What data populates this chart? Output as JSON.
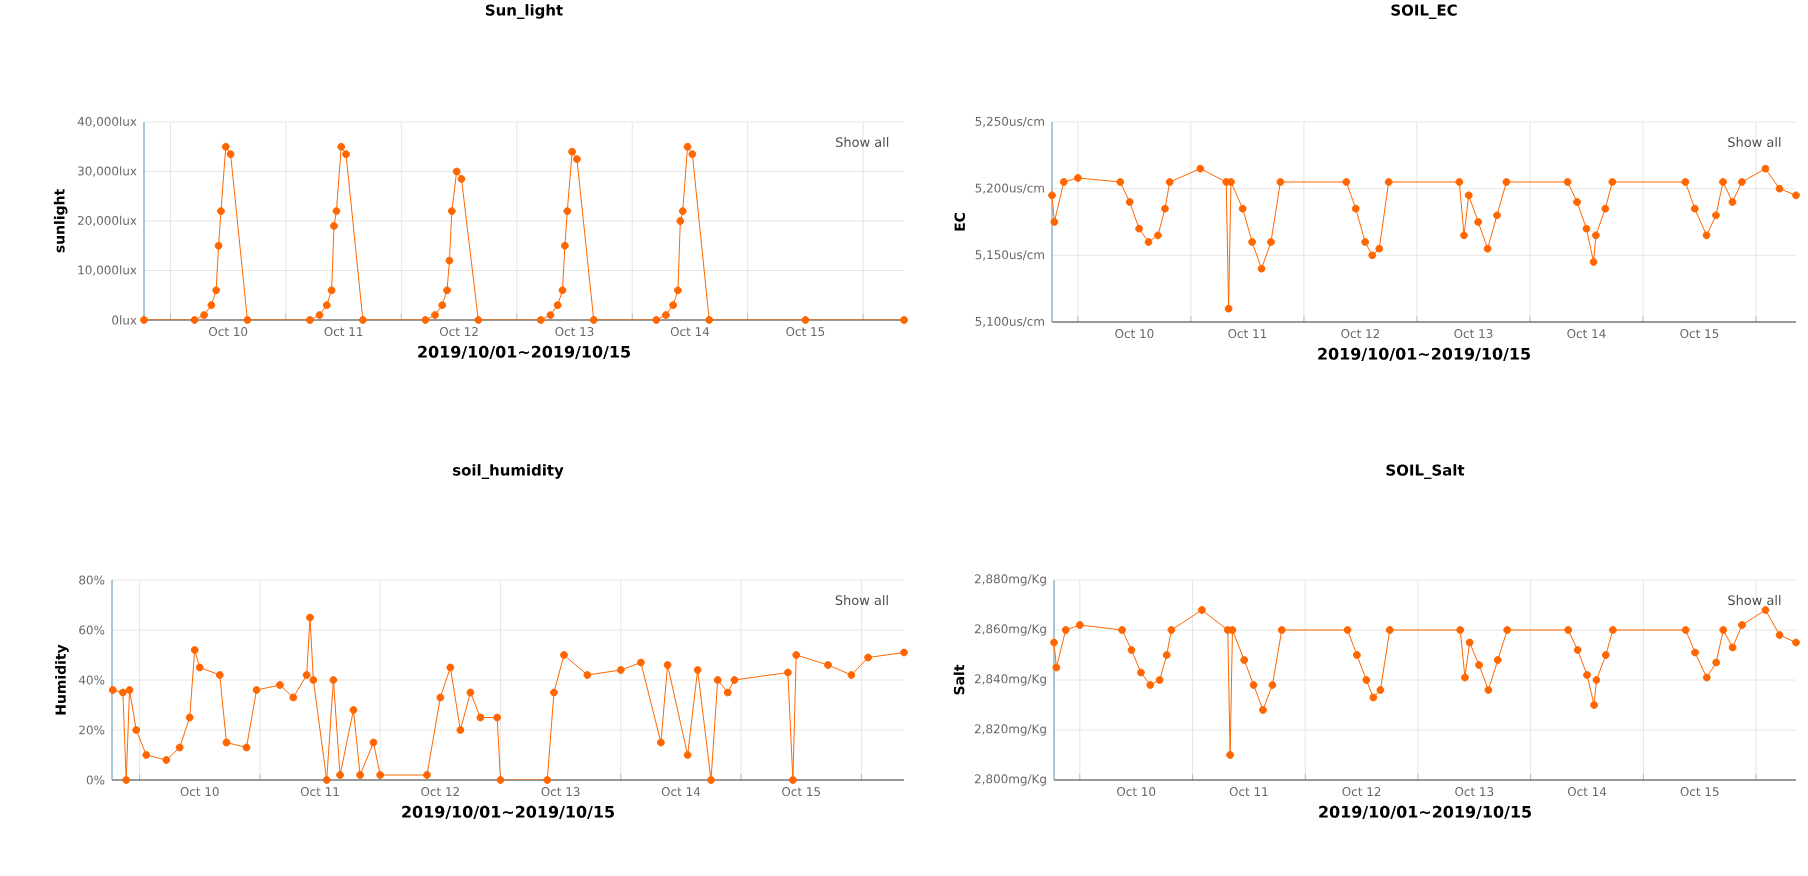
{
  "chart_data": [
    {
      "type": "line",
      "title": "Sun_light",
      "xlabel": "2019/10/01~2019/10/15",
      "ylabel": "sunlight",
      "annotations": [
        "Show all"
      ],
      "grid": true,
      "marker": "circle",
      "x": [
        "2019-10-09T18:30",
        "2019-10-10T05:00",
        "2019-10-10T07:00",
        "2019-10-10T08:30",
        "2019-10-10T09:30",
        "2019-10-10T10:00",
        "2019-10-10T10:30",
        "2019-10-10T11:30",
        "2019-10-10T12:30",
        "2019-10-10T16:00",
        "2019-10-11T05:00",
        "2019-10-11T07:00",
        "2019-10-11T08:30",
        "2019-10-11T09:30",
        "2019-10-11T10:00",
        "2019-10-11T10:30",
        "2019-10-11T11:30",
        "2019-10-11T12:30",
        "2019-10-11T16:00",
        "2019-10-12T05:00",
        "2019-10-12T07:00",
        "2019-10-12T08:30",
        "2019-10-12T09:30",
        "2019-10-12T10:00",
        "2019-10-12T10:30",
        "2019-10-12T11:30",
        "2019-10-12T12:30",
        "2019-10-12T16:00",
        "2019-10-13T05:00",
        "2019-10-13T07:00",
        "2019-10-13T08:30",
        "2019-10-13T09:30",
        "2019-10-13T10:00",
        "2019-10-13T10:30",
        "2019-10-13T11:30",
        "2019-10-13T12:30",
        "2019-10-13T16:00",
        "2019-10-14T05:00",
        "2019-10-14T07:00",
        "2019-10-14T08:30",
        "2019-10-14T09:30",
        "2019-10-14T10:00",
        "2019-10-14T10:30",
        "2019-10-14T11:30",
        "2019-10-14T12:30",
        "2019-10-14T16:00",
        "2019-10-15T12:00",
        "2019-10-16T08:30"
      ],
      "series": [
        {
          "color": "#ff6600",
          "values": [
            0,
            0,
            1000,
            3000,
            6000,
            15000,
            22000,
            35000,
            33500,
            0,
            0,
            1000,
            3000,
            6000,
            19000,
            22000,
            35000,
            33500,
            0,
            0,
            1000,
            3000,
            6000,
            12000,
            22000,
            30000,
            28500,
            0,
            0,
            1000,
            3000,
            6000,
            15000,
            22000,
            34000,
            32500,
            0,
            0,
            1000,
            3000,
            6000,
            20000,
            22000,
            35000,
            33500,
            0,
            0,
            0
          ]
        }
      ],
      "xlim": [
        "2019-10-09T18:30",
        "2019-10-16T08:30"
      ],
      "ylim": [
        0,
        40000
      ],
      "xticks": [
        {
          "value": "2019-10-10T00:00",
          "label": null
        },
        {
          "value": "2019-10-11T00:00",
          "label": null
        },
        {
          "value": "2019-10-12T00:00",
          "label": null
        },
        {
          "value": "2019-10-13T00:00",
          "label": null
        },
        {
          "value": "2019-10-14T00:00",
          "label": null
        },
        {
          "value": "2019-10-15T00:00",
          "label": null
        },
        {
          "value": "2019-10-16T00:00",
          "label": null
        },
        {
          "value": "2019-10-10T12:00",
          "label": "Oct 10"
        },
        {
          "value": "2019-10-11T12:00",
          "label": "Oct 11"
        },
        {
          "value": "2019-10-12T12:00",
          "label": "Oct 12"
        },
        {
          "value": "2019-10-13T12:00",
          "label": "Oct 13"
        },
        {
          "value": "2019-10-14T12:00",
          "label": "Oct 14"
        },
        {
          "value": "2019-10-15T12:00",
          "label": "Oct 15"
        }
      ],
      "yticks": [
        {
          "value": 0,
          "label": "0lux"
        },
        {
          "value": 10000,
          "label": "10,000lux"
        },
        {
          "value": 20000,
          "label": "20,000lux"
        },
        {
          "value": 30000,
          "label": "30,000lux"
        },
        {
          "value": 40000,
          "label": "40,000lux"
        }
      ]
    },
    {
      "type": "line",
      "title": "SOIL_EC",
      "xlabel": "2019/10/01~2019/10/15",
      "ylabel": "EC",
      "annotations": [
        "Show all"
      ],
      "grid": true,
      "marker": "circle",
      "x": [
        "2019-10-09T18:30",
        "2019-10-09T19:00",
        "2019-10-09T21:00",
        "2019-10-10T00:00",
        "2019-10-10T09:00",
        "2019-10-10T11:00",
        "2019-10-10T13:00",
        "2019-10-10T15:00",
        "2019-10-10T17:00",
        "2019-10-10T18:30",
        "2019-10-10T19:30",
        "2019-10-11T02:00",
        "2019-10-11T07:30",
        "2019-10-11T08:00",
        "2019-10-11T08:30",
        "2019-10-11T11:00",
        "2019-10-11T13:00",
        "2019-10-11T15:00",
        "2019-10-11T17:00",
        "2019-10-11T19:00",
        "2019-10-12T09:00",
        "2019-10-12T11:00",
        "2019-10-12T13:00",
        "2019-10-12T14:30",
        "2019-10-12T16:00",
        "2019-10-12T18:00",
        "2019-10-13T09:00",
        "2019-10-13T10:00",
        "2019-10-13T11:00",
        "2019-10-13T13:00",
        "2019-10-13T15:00",
        "2019-10-13T17:00",
        "2019-10-13T19:00",
        "2019-10-14T08:00",
        "2019-10-14T10:00",
        "2019-10-14T12:00",
        "2019-10-14T13:30",
        "2019-10-14T14:00",
        "2019-10-14T16:00",
        "2019-10-14T17:30",
        "2019-10-15T09:00",
        "2019-10-15T11:00",
        "2019-10-15T13:30",
        "2019-10-15T15:30",
        "2019-10-15T17:00",
        "2019-10-15T19:00",
        "2019-10-15T21:00",
        "2019-10-16T02:00",
        "2019-10-16T05:00",
        "2019-10-16T08:30"
      ],
      "series": [
        {
          "color": "#ff6600",
          "values": [
            5195,
            5175,
            5205,
            5208,
            5205,
            5190,
            5170,
            5160,
            5165,
            5185,
            5205,
            5215,
            5205,
            5110,
            5205,
            5185,
            5160,
            5140,
            5160,
            5205,
            5205,
            5185,
            5160,
            5150,
            5155,
            5205,
            5205,
            5165,
            5195,
            5175,
            5155,
            5180,
            5205,
            5205,
            5190,
            5170,
            5145,
            5165,
            5185,
            5205,
            5205,
            5185,
            5165,
            5180,
            5205,
            5190,
            5205,
            5215,
            5200,
            5195
          ]
        }
      ],
      "xlim": [
        "2019-10-09T18:30",
        "2019-10-16T08:30"
      ],
      "ylim": [
        5100,
        5250
      ],
      "xticks": [
        {
          "value": "2019-10-10T00:00",
          "label": null
        },
        {
          "value": "2019-10-11T00:00",
          "label": null
        },
        {
          "value": "2019-10-12T00:00",
          "label": null
        },
        {
          "value": "2019-10-13T00:00",
          "label": null
        },
        {
          "value": "2019-10-14T00:00",
          "label": null
        },
        {
          "value": "2019-10-15T00:00",
          "label": null
        },
        {
          "value": "2019-10-16T00:00",
          "label": null
        },
        {
          "value": "2019-10-10T12:00",
          "label": "Oct 10"
        },
        {
          "value": "2019-10-11T12:00",
          "label": "Oct 11"
        },
        {
          "value": "2019-10-12T12:00",
          "label": "Oct 12"
        },
        {
          "value": "2019-10-13T12:00",
          "label": "Oct 13"
        },
        {
          "value": "2019-10-14T12:00",
          "label": "Oct 14"
        },
        {
          "value": "2019-10-15T12:00",
          "label": "Oct 15"
        }
      ],
      "yticks": [
        {
          "value": 5100,
          "label": "5,100us/cm"
        },
        {
          "value": 5150,
          "label": "5,150us/cm"
        },
        {
          "value": 5200,
          "label": "5,200us/cm"
        },
        {
          "value": 5250,
          "label": "5,250us/cm"
        }
      ]
    },
    {
      "type": "line",
      "title": "soil_humidity",
      "xlabel": "2019/10/01~2019/10/15",
      "ylabel": "Humidity",
      "annotations": [
        "Show all"
      ],
      "grid": true,
      "marker": "circle",
      "x": [
        "2019-10-09T18:40",
        "2019-10-09T20:40",
        "2019-10-09T21:20",
        "2019-10-09T22:00",
        "2019-10-09T23:20",
        "2019-10-10T01:20",
        "2019-10-10T05:20",
        "2019-10-10T08:00",
        "2019-10-10T10:00",
        "2019-10-10T11:00",
        "2019-10-10T12:00",
        "2019-10-10T16:00",
        "2019-10-10T17:20",
        "2019-10-10T21:20",
        "2019-10-10T23:20",
        "2019-10-11T04:00",
        "2019-10-11T06:40",
        "2019-10-11T09:20",
        "2019-10-11T10:00",
        "2019-10-11T10:40",
        "2019-10-11T13:20",
        "2019-10-11T14:40",
        "2019-10-11T16:00",
        "2019-10-11T18:40",
        "2019-10-11T20:00",
        "2019-10-11T22:40",
        "2019-10-12T00:00",
        "2019-10-12T09:20",
        "2019-10-12T12:00",
        "2019-10-12T14:00",
        "2019-10-12T16:00",
        "2019-10-12T18:00",
        "2019-10-12T20:00",
        "2019-10-12T23:20",
        "2019-10-13T00:00",
        "2019-10-13T09:20",
        "2019-10-13T10:40",
        "2019-10-13T12:40",
        "2019-10-13T17:20",
        "2019-10-14T00:00",
        "2019-10-14T04:00",
        "2019-10-14T08:00",
        "2019-10-14T09:20",
        "2019-10-14T13:20",
        "2019-10-14T15:20",
        "2019-10-14T18:00",
        "2019-10-14T19:20",
        "2019-10-14T21:20",
        "2019-10-14T22:40",
        "2019-10-15T09:20",
        "2019-10-15T10:20",
        "2019-10-15T11:00",
        "2019-10-15T17:20",
        "2019-10-15T22:00",
        "2019-10-16T01:20",
        "2019-10-16T08:30"
      ],
      "series": [
        {
          "color": "#ff6600",
          "values": [
            36,
            35,
            0,
            36,
            20,
            10,
            8,
            13,
            25,
            52,
            45,
            42,
            15,
            13,
            36,
            38,
            33,
            42,
            65,
            40,
            0,
            40,
            2,
            28,
            2,
            15,
            2,
            2,
            33,
            45,
            20,
            35,
            25,
            25,
            0,
            0,
            35,
            50,
            42,
            44,
            47,
            15,
            46,
            10,
            44,
            0,
            40,
            35,
            40,
            43,
            0,
            50,
            46,
            42,
            49,
            51
          ]
        }
      ],
      "xlim": [
        "2019-10-09T18:30",
        "2019-10-16T08:30"
      ],
      "ylim": [
        0,
        80
      ],
      "xticks": [
        {
          "value": "2019-10-10T00:00",
          "label": null
        },
        {
          "value": "2019-10-11T00:00",
          "label": null
        },
        {
          "value": "2019-10-12T00:00",
          "label": null
        },
        {
          "value": "2019-10-13T00:00",
          "label": null
        },
        {
          "value": "2019-10-14T00:00",
          "label": null
        },
        {
          "value": "2019-10-15T00:00",
          "label": null
        },
        {
          "value": "2019-10-16T00:00",
          "label": null
        },
        {
          "value": "2019-10-10T12:00",
          "label": "Oct 10"
        },
        {
          "value": "2019-10-11T12:00",
          "label": "Oct 11"
        },
        {
          "value": "2019-10-12T12:00",
          "label": "Oct 12"
        },
        {
          "value": "2019-10-13T12:00",
          "label": "Oct 13"
        },
        {
          "value": "2019-10-14T12:00",
          "label": "Oct 14"
        },
        {
          "value": "2019-10-15T12:00",
          "label": "Oct 15"
        }
      ],
      "yticks": [
        {
          "value": 0,
          "label": "0%"
        },
        {
          "value": 20,
          "label": "20%"
        },
        {
          "value": 40,
          "label": "40%"
        },
        {
          "value": 60,
          "label": "60%"
        },
        {
          "value": 80,
          "label": "80%"
        }
      ]
    },
    {
      "type": "line",
      "title": "SOIL_Salt",
      "xlabel": "2019/10/01~2019/10/15",
      "ylabel": "Salt",
      "annotations": [
        "Show all"
      ],
      "grid": true,
      "marker": "circle",
      "x": [
        "2019-10-09T18:30",
        "2019-10-09T19:00",
        "2019-10-09T21:00",
        "2019-10-10T00:00",
        "2019-10-10T09:00",
        "2019-10-10T11:00",
        "2019-10-10T13:00",
        "2019-10-10T15:00",
        "2019-10-10T17:00",
        "2019-10-10T18:30",
        "2019-10-10T19:30",
        "2019-10-11T02:00",
        "2019-10-11T07:30",
        "2019-10-11T08:00",
        "2019-10-11T08:30",
        "2019-10-11T11:00",
        "2019-10-11T13:00",
        "2019-10-11T15:00",
        "2019-10-11T17:00",
        "2019-10-11T19:00",
        "2019-10-12T09:00",
        "2019-10-12T11:00",
        "2019-10-12T13:00",
        "2019-10-12T14:30",
        "2019-10-12T16:00",
        "2019-10-12T18:00",
        "2019-10-13T09:00",
        "2019-10-13T10:00",
        "2019-10-13T11:00",
        "2019-10-13T13:00",
        "2019-10-13T15:00",
        "2019-10-13T17:00",
        "2019-10-13T19:00",
        "2019-10-14T08:00",
        "2019-10-14T10:00",
        "2019-10-14T12:00",
        "2019-10-14T13:30",
        "2019-10-14T14:00",
        "2019-10-14T16:00",
        "2019-10-14T17:30",
        "2019-10-15T09:00",
        "2019-10-15T11:00",
        "2019-10-15T13:30",
        "2019-10-15T15:30",
        "2019-10-15T17:00",
        "2019-10-15T19:00",
        "2019-10-15T21:00",
        "2019-10-16T02:00",
        "2019-10-16T05:00",
        "2019-10-16T08:30"
      ],
      "series": [
        {
          "color": "#ff6600",
          "values": [
            2855,
            2845,
            2860,
            2862,
            2860,
            2852,
            2843,
            2838,
            2840,
            2850,
            2860,
            2868,
            2860,
            2810,
            2860,
            2848,
            2838,
            2828,
            2838,
            2860,
            2860,
            2850,
            2840,
            2833,
            2836,
            2860,
            2860,
            2841,
            2855,
            2846,
            2836,
            2848,
            2860,
            2860,
            2852,
            2842,
            2830,
            2840,
            2850,
            2860,
            2860,
            2851,
            2841,
            2847,
            2860,
            2853,
            2862,
            2868,
            2858,
            2855
          ]
        }
      ],
      "xlim": [
        "2019-10-09T18:30",
        "2019-10-16T08:30"
      ],
      "ylim": [
        2800,
        2880
      ],
      "xticks": [
        {
          "value": "2019-10-10T00:00",
          "label": null
        },
        {
          "value": "2019-10-11T00:00",
          "label": null
        },
        {
          "value": "2019-10-12T00:00",
          "label": null
        },
        {
          "value": "2019-10-13T00:00",
          "label": null
        },
        {
          "value": "2019-10-14T00:00",
          "label": null
        },
        {
          "value": "2019-10-15T00:00",
          "label": null
        },
        {
          "value": "2019-10-16T00:00",
          "label": null
        },
        {
          "value": "2019-10-10T12:00",
          "label": "Oct 10"
        },
        {
          "value": "2019-10-11T12:00",
          "label": "Oct 11"
        },
        {
          "value": "2019-10-12T12:00",
          "label": "Oct 12"
        },
        {
          "value": "2019-10-13T12:00",
          "label": "Oct 13"
        },
        {
          "value": "2019-10-14T12:00",
          "label": "Oct 14"
        },
        {
          "value": "2019-10-15T12:00",
          "label": "Oct 15"
        }
      ],
      "yticks": [
        {
          "value": 2800,
          "label": "2,800mg/Kg"
        },
        {
          "value": 2820,
          "label": "2,820mg/Kg"
        },
        {
          "value": 2840,
          "label": "2,840mg/Kg"
        },
        {
          "value": 2860,
          "label": "2,860mg/Kg"
        },
        {
          "value": 2880,
          "label": "2,880mg/Kg"
        }
      ]
    }
  ]
}
